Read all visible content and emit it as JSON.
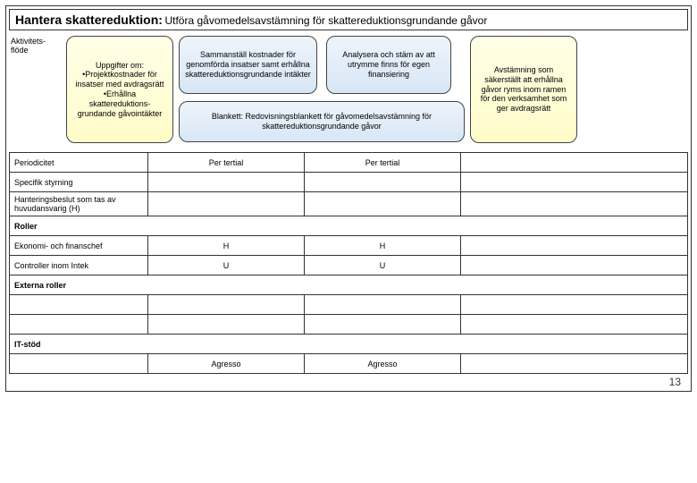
{
  "header": {
    "title_main": "Hantera skattereduktion:",
    "title_sub": "Utföra gåvomedelsavstämning för skattereduktionsgrundande gåvor"
  },
  "flow": {
    "label": "Aktivitets-flöde",
    "box_inputs": "Uppgifter om:\n•Projektkostnader för insatser med avdragsrätt\n•Erhållna skattereduktions-grundande gåvointäkter",
    "box_compile": "Sammanställ kostnader för genomförda insatser samt erhållna skattereduktionsgrundande intäkter",
    "box_analyze": "Analysera och stäm av att utrymme finns för egen finansiering",
    "box_form": "Blankett: Redovisningsblankett för gåvomedelsavstämning för skattereduktionsgrundande gåvor",
    "box_output": "Avstämning som säkerställt att erhållna gåvor ryms inom ramen för den verksamhet som ger avdragsrätt"
  },
  "colors": {
    "yellow_box_bg_top": "#ffffe8",
    "yellow_box_bg_bottom": "#fffcc8",
    "blue_box_bg_top": "#eef4fb",
    "blue_box_bg_bottom": "#d8e6f5",
    "border": "#333333",
    "text": "#000000"
  },
  "table": {
    "rows": [
      {
        "label": "Periodicitet",
        "a": "Per tertial",
        "b": "Per tertial",
        "c": ""
      },
      {
        "label": "Specifik styrning",
        "a": "",
        "b": "",
        "c": ""
      },
      {
        "label": "Hanteringsbeslut som tas av huvudansvarig (H)",
        "a": "",
        "b": "",
        "c": ""
      }
    ],
    "roles_header": "Roller",
    "roles": [
      {
        "label": "Ekonomi- och finanschef",
        "a": "H",
        "b": "H",
        "c": ""
      },
      {
        "label": "Controller inom Intek",
        "a": "U",
        "b": "U",
        "c": ""
      }
    ],
    "external_header": "Externa roller",
    "it_header": "IT-stöd",
    "it": {
      "a": "Agresso",
      "b": "Agresso",
      "c": ""
    }
  },
  "page_number": "13"
}
